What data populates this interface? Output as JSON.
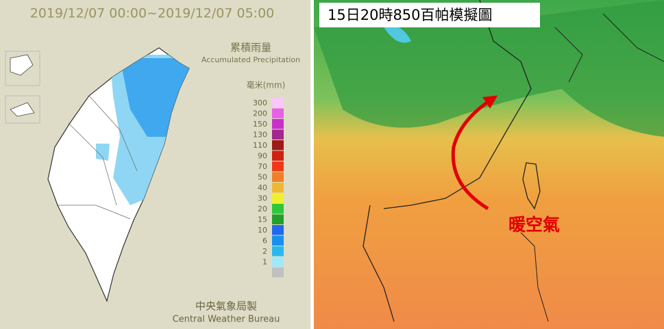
{
  "left_panel": {
    "period": "2019/12/07 00:00~2019/12/07 05:00",
    "legend_title_zh": "累積雨量",
    "legend_title_en": "Accumulated Precipitation",
    "unit": "毫米(mm)",
    "legend": [
      {
        "label": 300,
        "color": "#f8c8f8"
      },
      {
        "label": 200,
        "color": "#e860e8"
      },
      {
        "label": 150,
        "color": "#c830c8"
      },
      {
        "label": 130,
        "color": "#a02890"
      },
      {
        "label": 110,
        "color": "#a01818"
      },
      {
        "label": 90,
        "color": "#d02010"
      },
      {
        "label": 70,
        "color": "#f03818"
      },
      {
        "label": 50,
        "color": "#f08028"
      },
      {
        "label": 40,
        "color": "#f0b830"
      },
      {
        "label": 30,
        "color": "#f0f030"
      },
      {
        "label": 20,
        "color": "#30c838"
      },
      {
        "label": 15,
        "color": "#20a028"
      },
      {
        "label": 10,
        "color": "#2068f0"
      },
      {
        "label": 6,
        "color": "#1890f0"
      },
      {
        "label": 2,
        "color": "#28b8f0"
      },
      {
        "label": 1,
        "color": "#a0e8f8"
      }
    ],
    "credit_zh": "中央氣象局製",
    "credit_en": "Central Weather Bureau"
  },
  "right_panel": {
    "title": "15日20時850百帕模擬圖",
    "annotation": "暖空氣"
  }
}
